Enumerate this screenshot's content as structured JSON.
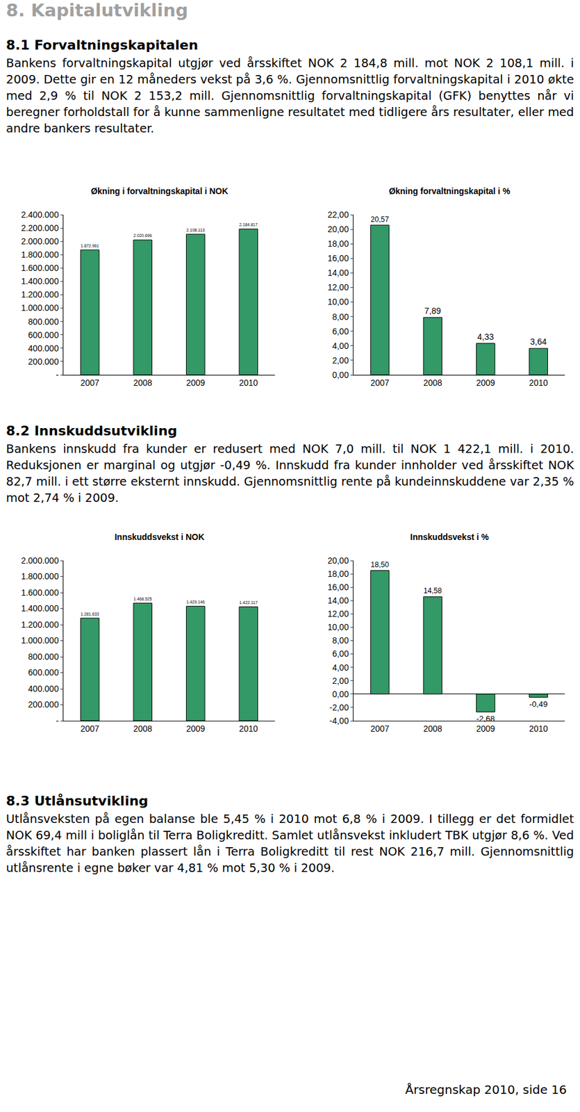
{
  "header": "8. Kapitalutvikling",
  "sections": [
    {
      "title": "8.1 Forvaltningskapitalen",
      "text": "Bankens forvaltningskapital utgjør ved årsskiftet NOK 2 184,8 mill. mot NOK 2 108,1 mill. i 2009. Dette gir en 12 måneders vekst på 3,6 %. Gjennomsnittlig forvaltningskapital i 2010 økte med 2,9 % til NOK 2 153,2 mill. Gjennomsnittlig forvaltningskapital (GFK) benyttes når vi beregner forholdstall for å kunne sammenligne resultatet med tidligere års resultater, eller med andre bankers resultater."
    },
    {
      "title": "8.2 Innskuddsutvikling",
      "text": "Bankens innskudd fra kunder er redusert med NOK 7,0 mill. til NOK 1 422,1 mill. i 2010. Reduksjonen er marginal og utgjør -0,49 %. Innskudd fra kunder innholder ved årsskiftet NOK 82,7 mill. i ett større eksternt innskudd. Gjennomsnittlig rente på kundeinnskuddene var 2,35 % mot 2,74 % i 2009."
    },
    {
      "title": "8.3 Utlånsutvikling",
      "text": "Utlånsveksten på egen balanse ble 5,45 % i 2010 mot 6,8 % i 2009. I tillegg er det formidlet NOK 69,4 mill i boliglån til Terra Boligkreditt. Samlet utlånsvekst inkludert TBK utgjør 8,6 %. Ved årsskiftet har banken plassert lån i Terra Boligkreditt til rest NOK 216,7 mill. Gjennomsnittlig utlånsrente i egne bøker var 4,81 % mot 5,30 % i 2009."
    }
  ],
  "footer": "Årsregnskap 2010, side 16",
  "chart_data": [
    {
      "type": "bar",
      "title": "Økning i forvaltningskapital i NOK",
      "categories": [
        "2007",
        "2008",
        "2009",
        "2010"
      ],
      "values": [
        1872961,
        2020696,
        2108113,
        2184817
      ],
      "value_labels": [
        "1.872.961",
        "2.020.696",
        "2.108.113",
        "2.184.817"
      ],
      "data_labels": true,
      "color": "#339966",
      "grid": false,
      "ylim": [
        0,
        2400000
      ],
      "yticks": [
        {
          "value": 0,
          "label": "-"
        },
        {
          "value": 200000,
          "label": "200.000"
        },
        {
          "value": 400000,
          "label": "400.000"
        },
        {
          "value": 600000,
          "label": "600.000"
        },
        {
          "value": 800000,
          "label": "800.000"
        },
        {
          "value": 1000000,
          "label": "1.000.000"
        },
        {
          "value": 1200000,
          "label": "1.200.000"
        },
        {
          "value": 1400000,
          "label": "1.400.000"
        },
        {
          "value": 1600000,
          "label": "1.600.000"
        },
        {
          "value": 1800000,
          "label": "1.800.000"
        },
        {
          "value": 2000000,
          "label": "2.000.000"
        },
        {
          "value": 2200000,
          "label": "2.200.000"
        },
        {
          "value": 2400000,
          "label": "2.400.000"
        }
      ]
    },
    {
      "type": "bar",
      "title": "Økning forvaltningskapital i %",
      "categories": [
        "2007",
        "2008",
        "2009",
        "2010"
      ],
      "values": [
        20.57,
        7.89,
        4.33,
        3.64
      ],
      "value_labels": [
        "20,57",
        "7,89",
        "4,33",
        "3,64"
      ],
      "data_labels": true,
      "color": "#339966",
      "grid": false,
      "ylim": [
        0,
        22
      ],
      "yticks": [
        {
          "value": 0,
          "label": "0,00"
        },
        {
          "value": 2,
          "label": "2,00"
        },
        {
          "value": 4,
          "label": "4,00"
        },
        {
          "value": 6,
          "label": "6,00"
        },
        {
          "value": 8,
          "label": "8,00"
        },
        {
          "value": 10,
          "label": "10,00"
        },
        {
          "value": 12,
          "label": "12,00"
        },
        {
          "value": 14,
          "label": "14,00"
        },
        {
          "value": 16,
          "label": "16,00"
        },
        {
          "value": 18,
          "label": "18,00"
        },
        {
          "value": 20,
          "label": "20,00"
        },
        {
          "value": 22,
          "label": "22,00"
        }
      ]
    },
    {
      "type": "bar",
      "title": "Innskuddsvekst i NOK",
      "categories": [
        "2007",
        "2008",
        "2009",
        "2010"
      ],
      "values": [
        1281633,
        1468525,
        1429146,
        1422117
      ],
      "value_labels": [
        "1.281.633",
        "1.468.525",
        "1.429.146",
        "1.422.117"
      ],
      "data_labels": true,
      "color": "#339966",
      "grid": false,
      "ylim": [
        0,
        2000000
      ],
      "yticks": [
        {
          "value": 0,
          "label": "-"
        },
        {
          "value": 200000,
          "label": "200.000"
        },
        {
          "value": 400000,
          "label": "400.000"
        },
        {
          "value": 600000,
          "label": "600.000"
        },
        {
          "value": 800000,
          "label": "800.000"
        },
        {
          "value": 1000000,
          "label": "1.000.000"
        },
        {
          "value": 1200000,
          "label": "1.200.000"
        },
        {
          "value": 1400000,
          "label": "1.400.000"
        },
        {
          "value": 1600000,
          "label": "1.600.000"
        },
        {
          "value": 1800000,
          "label": "1.800.000"
        },
        {
          "value": 2000000,
          "label": "2.000.000"
        }
      ]
    },
    {
      "type": "bar",
      "title": "Innskuddsvekst i %",
      "categories": [
        "2007",
        "2008",
        "2009",
        "2010"
      ],
      "values": [
        18.5,
        14.58,
        -2.68,
        -0.49
      ],
      "value_labels": [
        "18,50",
        "14,58",
        "-2,68",
        "-0,49"
      ],
      "data_labels": true,
      "color": "#339966",
      "grid": false,
      "ylim": [
        -4,
        20
      ],
      "yticks": [
        {
          "value": -4,
          "label": "-4,00"
        },
        {
          "value": -2,
          "label": "-2,00"
        },
        {
          "value": 0,
          "label": "0,00"
        },
        {
          "value": 2,
          "label": "2,00"
        },
        {
          "value": 4,
          "label": "4,00"
        },
        {
          "value": 6,
          "label": "6,00"
        },
        {
          "value": 8,
          "label": "8,00"
        },
        {
          "value": 10,
          "label": "10,00"
        },
        {
          "value": 12,
          "label": "12,00"
        },
        {
          "value": 14,
          "label": "14,00"
        },
        {
          "value": 16,
          "label": "16,00"
        },
        {
          "value": 18,
          "label": "18,00"
        },
        {
          "value": 20,
          "label": "20,00"
        }
      ]
    }
  ]
}
